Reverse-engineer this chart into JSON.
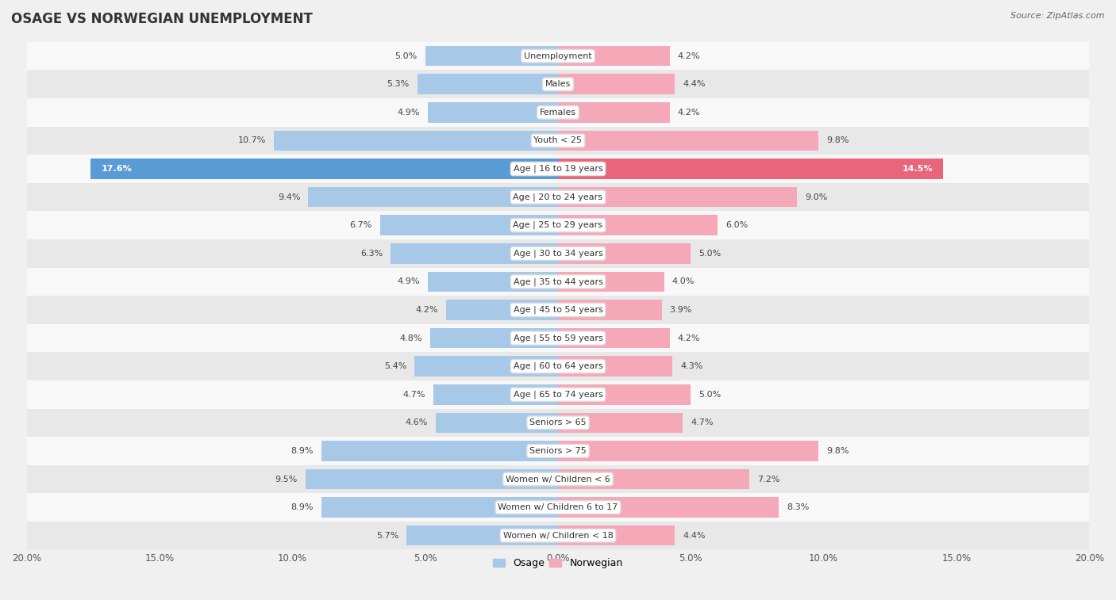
{
  "title": "OSAGE VS NORWEGIAN UNEMPLOYMENT",
  "source": "Source: ZipAtlas.com",
  "categories": [
    "Unemployment",
    "Males",
    "Females",
    "Youth < 25",
    "Age | 16 to 19 years",
    "Age | 20 to 24 years",
    "Age | 25 to 29 years",
    "Age | 30 to 34 years",
    "Age | 35 to 44 years",
    "Age | 45 to 54 years",
    "Age | 55 to 59 years",
    "Age | 60 to 64 years",
    "Age | 65 to 74 years",
    "Seniors > 65",
    "Seniors > 75",
    "Women w/ Children < 6",
    "Women w/ Children 6 to 17",
    "Women w/ Children < 18"
  ],
  "osage_values": [
    5.0,
    5.3,
    4.9,
    10.7,
    17.6,
    9.4,
    6.7,
    6.3,
    4.9,
    4.2,
    4.8,
    5.4,
    4.7,
    4.6,
    8.9,
    9.5,
    8.9,
    5.7
  ],
  "norwegian_values": [
    4.2,
    4.4,
    4.2,
    9.8,
    14.5,
    9.0,
    6.0,
    5.0,
    4.0,
    3.9,
    4.2,
    4.3,
    5.0,
    4.7,
    9.8,
    7.2,
    8.3,
    4.4
  ],
  "osage_color": "#a8c8e8",
  "norwegian_color": "#f4a8b8",
  "highlight_osage_color": "#5b9bd5",
  "highlight_norwegian_color": "#e8657a",
  "x_max": 20.0,
  "background_color": "#f0f0f0",
  "row_bg_light": "#f8f8f8",
  "row_bg_dark": "#e8e8e8",
  "legend_osage": "Osage",
  "legend_norwegian": "Norwegian"
}
